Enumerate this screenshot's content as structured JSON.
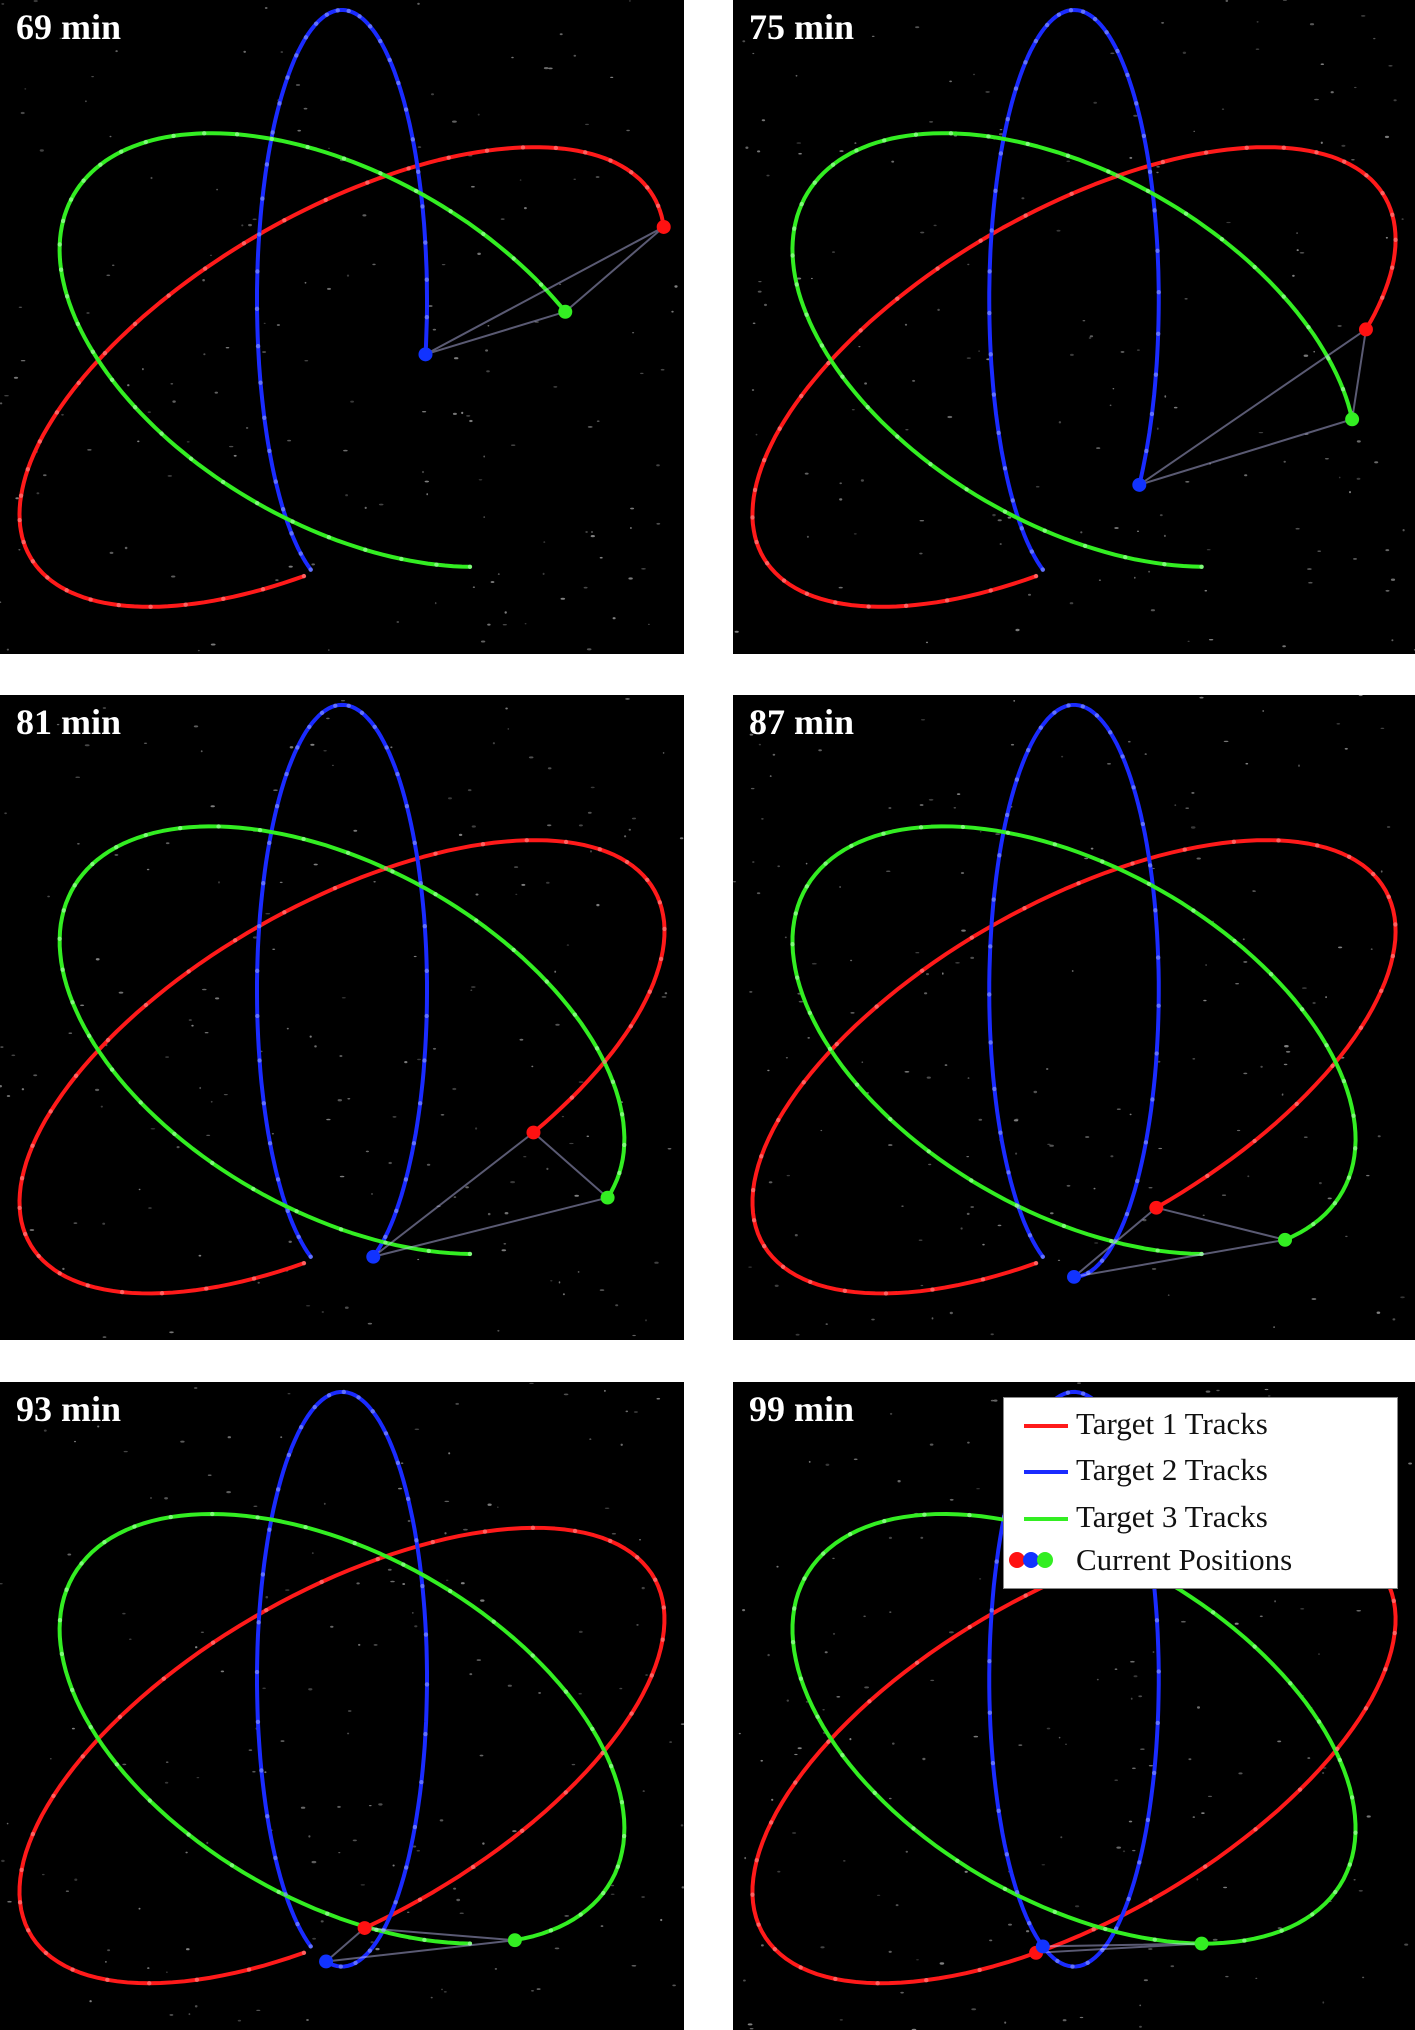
{
  "panels": [
    {
      "time_label": "69 min"
    },
    {
      "time_label": "75 min"
    },
    {
      "time_label": "81 min"
    },
    {
      "time_label": "87 min"
    },
    {
      "time_label": "93 min"
    },
    {
      "time_label": "99 min"
    }
  ],
  "legend": {
    "items": [
      {
        "label": "Target 1 Tracks",
        "color": "#ff1a1a"
      },
      {
        "label": "Target 2 Tracks",
        "color": "#1a2bff"
      },
      {
        "label": "Target 3 Tracks",
        "color": "#33ee22"
      },
      {
        "label": "Current Positions",
        "dots": [
          "#ff1111",
          "#1133ff",
          "#33ee22"
        ]
      }
    ]
  },
  "colors": {
    "target1": "#ff1a1a",
    "target2": "#1a2bff",
    "target3": "#33ee22",
    "background": "#000000"
  }
}
